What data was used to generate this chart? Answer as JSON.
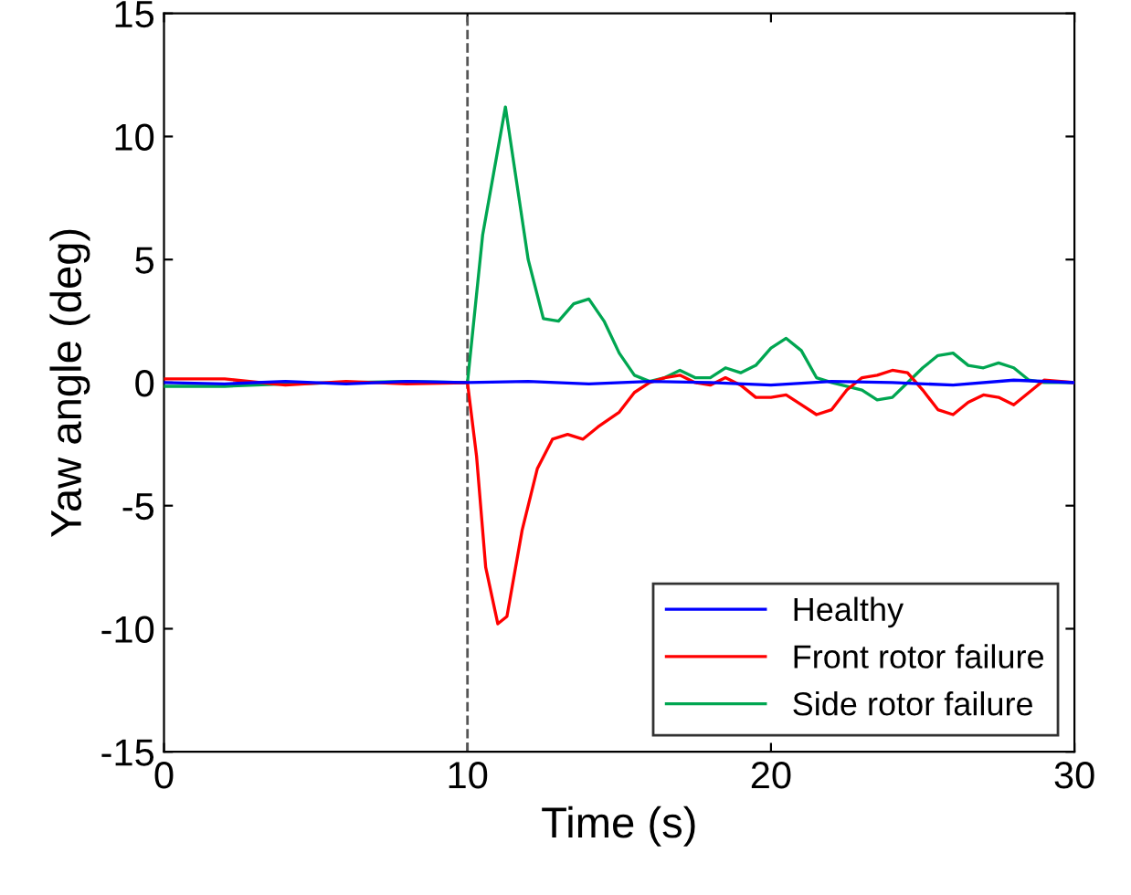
{
  "chart_data": {
    "type": "line",
    "xlabel": "Time (s)",
    "ylabel": "Yaw angle (deg)",
    "xlim": [
      0,
      30
    ],
    "ylim": [
      -15,
      15
    ],
    "xticks": [
      0,
      10,
      20,
      30
    ],
    "yticks": [
      -15,
      -10,
      -5,
      0,
      5,
      10,
      15
    ],
    "grid": false,
    "legend": "bottom right",
    "line_style": "solid",
    "marker": "none",
    "ref_lines": [
      {
        "axis": "x",
        "value": 10,
        "color": "#555555",
        "line_style": "dashed"
      }
    ],
    "series": [
      {
        "name": "Healthy",
        "color": "#0000ff",
        "x": [
          0,
          2,
          4,
          6,
          8,
          10,
          12,
          14,
          16,
          18,
          20,
          22,
          24,
          26,
          28,
          30
        ],
        "values": [
          0,
          -0.05,
          0.05,
          -0.05,
          0.05,
          0,
          0.05,
          -0.05,
          0.05,
          0,
          -0.1,
          0.05,
          0,
          -0.1,
          0.1,
          0
        ]
      },
      {
        "name": "Front rotor failure",
        "color": "#ff0000",
        "x": [
          0,
          2,
          4,
          6,
          8,
          10,
          10.3,
          10.6,
          11,
          11.3,
          11.8,
          12.3,
          12.8,
          13.3,
          13.8,
          14.3,
          15,
          15.5,
          16,
          16.5,
          17,
          17.5,
          18,
          18.5,
          19,
          19.5,
          20,
          20.5,
          21,
          21.5,
          22,
          22.5,
          23,
          23.5,
          24,
          24.5,
          25,
          25.5,
          26,
          26.5,
          27,
          27.5,
          28,
          28.5,
          29,
          30
        ],
        "values": [
          0.15,
          0.15,
          -0.1,
          0.05,
          -0.05,
          0,
          -3,
          -7.5,
          -9.8,
          -9.5,
          -6,
          -3.5,
          -2.3,
          -2.1,
          -2.3,
          -1.8,
          -1.2,
          -0.4,
          0,
          0.2,
          0.3,
          0,
          -0.1,
          0.2,
          -0.1,
          -0.6,
          -0.6,
          -0.5,
          -0.9,
          -1.3,
          -1.1,
          -0.3,
          0.2,
          0.3,
          0.5,
          0.4,
          -0.3,
          -1.1,
          -1.3,
          -0.8,
          -0.5,
          -0.6,
          -0.9,
          -0.4,
          0.1,
          0
        ]
      },
      {
        "name": "Side rotor failure",
        "color": "#00a651",
        "x": [
          0,
          2,
          4,
          6,
          8,
          10,
          10.5,
          11.25,
          12,
          12.5,
          13,
          13.5,
          14,
          14.5,
          15,
          15.5,
          16,
          16.5,
          17,
          17.5,
          18,
          18.5,
          19,
          19.5,
          20,
          20.5,
          21,
          21.5,
          22,
          23,
          23.5,
          24,
          24.5,
          25,
          25.5,
          26,
          26.5,
          27,
          27.5,
          28,
          28.5,
          29,
          30
        ],
        "values": [
          -0.15,
          -0.15,
          -0.05,
          0,
          0.05,
          0,
          6,
          11.2,
          5,
          2.6,
          2.5,
          3.2,
          3.4,
          2.5,
          1.2,
          0.3,
          0.05,
          0.2,
          0.5,
          0.2,
          0.2,
          0.6,
          0.4,
          0.7,
          1.4,
          1.8,
          1.3,
          0.2,
          0,
          -0.3,
          -0.7,
          -0.6,
          0,
          0.6,
          1.1,
          1.2,
          0.7,
          0.6,
          0.8,
          0.6,
          0.1,
          0,
          0
        ]
      }
    ]
  }
}
